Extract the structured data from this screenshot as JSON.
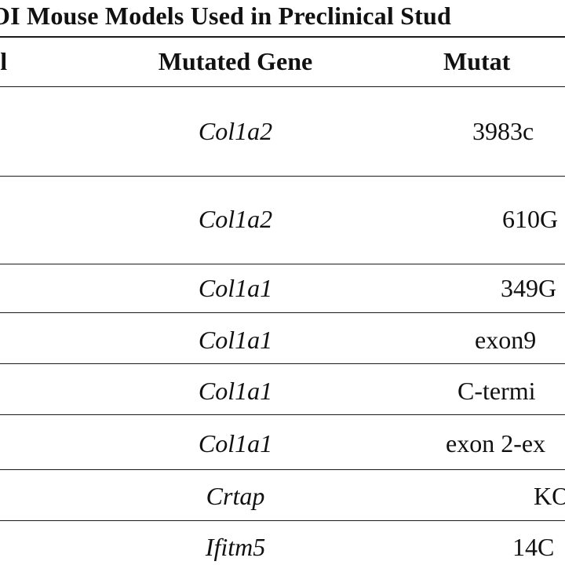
{
  "table": {
    "title": "OI Mouse Models Used in Preclinical Stud",
    "headers": {
      "model": "el",
      "gene": "Mutated Gene",
      "mutation": "Mutat"
    },
    "rows": [
      {
        "gene": "Col1a2",
        "mutation": "3983c"
      },
      {
        "gene": "Col1a2",
        "mutation": "610G"
      },
      {
        "gene": "Col1a1",
        "mutation": "349G"
      },
      {
        "gene": "Col1a1",
        "mutation": "exon9"
      },
      {
        "gene": "Col1a1",
        "mutation": "C-termi"
      },
      {
        "gene": "Col1a1",
        "mutation": "exon 2-ex"
      },
      {
        "gene": "Crtap",
        "mutation": "KO"
      },
      {
        "gene": "Ifitm5",
        "mutation": "14C"
      }
    ]
  }
}
